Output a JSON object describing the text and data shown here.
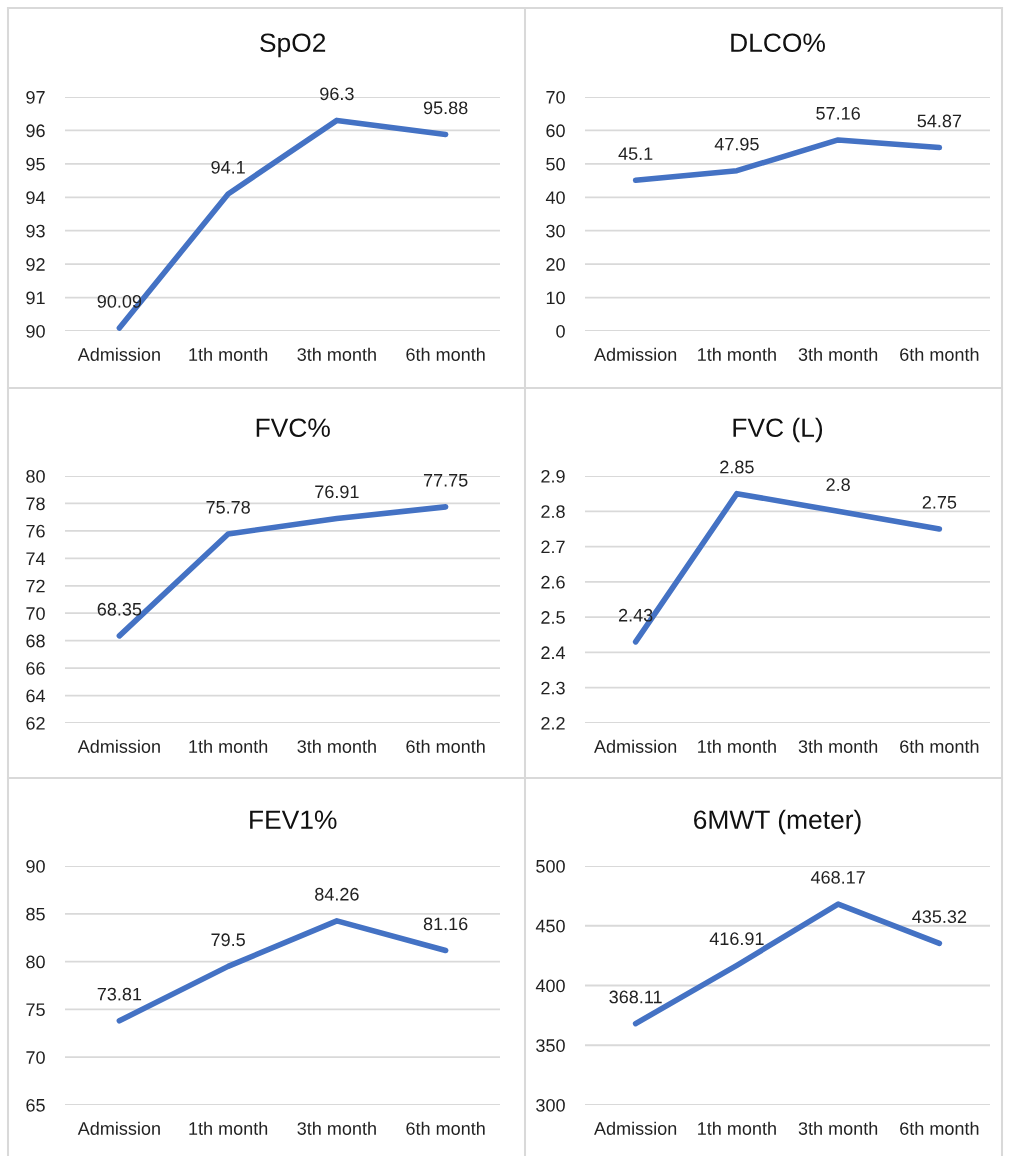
{
  "chart_data": [
    {
      "type": "line",
      "title": "SpO2",
      "categories": [
        "Admission",
        "1th month",
        "3th month",
        "6th month"
      ],
      "values": [
        90.09,
        94.1,
        96.3,
        95.88
      ],
      "color": "#4472c4",
      "ylim": [
        90,
        97
      ],
      "yticks": [
        90,
        91,
        92,
        93,
        94,
        95,
        96,
        97
      ],
      "grid": "y",
      "data_labels": true
    },
    {
      "type": "line",
      "title": "DLCO%",
      "categories": [
        "Admission",
        "1th month",
        "3th month",
        "6th month"
      ],
      "values": [
        45.1,
        47.95,
        57.16,
        54.87
      ],
      "color": "#4472c4",
      "ylim": [
        0,
        70
      ],
      "yticks": [
        0,
        10,
        20,
        30,
        40,
        50,
        60,
        70
      ],
      "grid": "y",
      "data_labels": true
    },
    {
      "type": "line",
      "title": "FVC%",
      "categories": [
        "Admission",
        "1th month",
        "3th month",
        "6th month"
      ],
      "values": [
        68.35,
        75.78,
        76.91,
        77.75
      ],
      "color": "#4472c4",
      "ylim": [
        62,
        80
      ],
      "yticks": [
        62,
        64,
        66,
        68,
        70,
        72,
        74,
        76,
        78,
        80
      ],
      "grid": "y",
      "data_labels": true
    },
    {
      "type": "line",
      "title": "FVC (L)",
      "categories": [
        "Admission",
        "1th month",
        "3th month",
        "6th month"
      ],
      "values": [
        2.43,
        2.85,
        2.8,
        2.75
      ],
      "color": "#4472c4",
      "ylim": [
        2.2,
        2.9
      ],
      "yticks": [
        2.2,
        2.3,
        2.4,
        2.5,
        2.6,
        2.7,
        2.8,
        2.9
      ],
      "grid": "y",
      "data_labels": true
    },
    {
      "type": "line",
      "title": "FEV1%",
      "categories": [
        "Admission",
        "1th month",
        "3th month",
        "6th month"
      ],
      "values": [
        73.81,
        79.5,
        84.26,
        81.16
      ],
      "color": "#4472c4",
      "ylim": [
        65,
        90
      ],
      "yticks": [
        65,
        70,
        75,
        80,
        85,
        90
      ],
      "grid": "y",
      "data_labels": true
    },
    {
      "type": "line",
      "title": "6MWT (meter)",
      "categories": [
        "Admission",
        "1th month",
        "3th month",
        "6th month"
      ],
      "values": [
        368.11,
        416.91,
        468.17,
        435.32
      ],
      "color": "#4472c4",
      "ylim": [
        300,
        500
      ],
      "yticks": [
        300,
        350,
        400,
        450,
        500
      ],
      "grid": "y",
      "data_labels": true
    }
  ]
}
